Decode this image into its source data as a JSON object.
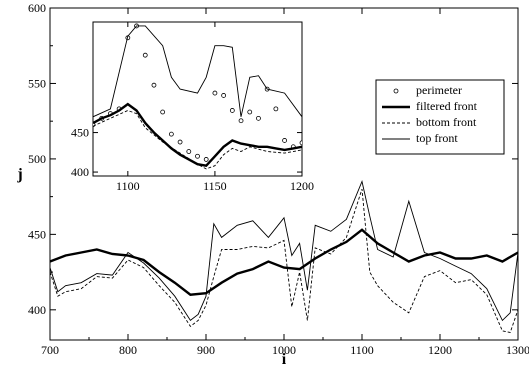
{
  "chart_data": [
    {
      "type": "line",
      "xlabel": "i",
      "ylabel": "j",
      "xlim": [
        700,
        1300
      ],
      "ylim": [
        380,
        600
      ],
      "xticks": [
        "700",
        "800",
        "900",
        "1000",
        "1100",
        "1200",
        "1300"
      ],
      "yticks": [
        "400",
        "450",
        "500",
        "550",
        "600"
      ],
      "grid": false,
      "legend_position": "right",
      "legend": [
        "perimeter",
        "filtered front",
        "bottom front",
        "top front"
      ],
      "series": [
        {
          "name": "filtered front",
          "style": "thick-solid",
          "x": [
            700,
            720,
            740,
            760,
            780,
            800,
            820,
            840,
            860,
            880,
            900,
            920,
            940,
            960,
            980,
            1000,
            1020,
            1040,
            1060,
            1080,
            1100,
            1120,
            1140,
            1160,
            1180,
            1200,
            1220,
            1240,
            1260,
            1280,
            1300
          ],
          "y": [
            432,
            436,
            438,
            440,
            437,
            436,
            433,
            425,
            418,
            410,
            411,
            418,
            424,
            427,
            432,
            428,
            427,
            434,
            440,
            445,
            453,
            444,
            438,
            432,
            436,
            438,
            434,
            434,
            436,
            432,
            438
          ]
        },
        {
          "name": "bottom front",
          "style": "dashed",
          "x": [
            700,
            710,
            720,
            740,
            760,
            780,
            800,
            820,
            840,
            860,
            880,
            890,
            900,
            910,
            920,
            940,
            960,
            980,
            1000,
            1010,
            1020,
            1030,
            1040,
            1060,
            1080,
            1100,
            1110,
            1120,
            1140,
            1160,
            1180,
            1200,
            1220,
            1240,
            1260,
            1280,
            1290,
            1300
          ],
          "y": [
            425,
            409,
            412,
            414,
            422,
            421,
            433,
            428,
            416,
            405,
            389,
            393,
            403,
            422,
            440,
            440,
            442,
            441,
            446,
            402,
            425,
            393,
            441,
            437,
            448,
            480,
            425,
            416,
            405,
            398,
            422,
            426,
            418,
            420,
            410,
            386,
            385,
            400
          ]
        },
        {
          "name": "top front",
          "style": "thin-solid",
          "x": [
            700,
            710,
            720,
            740,
            760,
            780,
            800,
            820,
            840,
            860,
            880,
            890,
            900,
            910,
            920,
            940,
            960,
            980,
            1000,
            1010,
            1020,
            1030,
            1040,
            1060,
            1080,
            1100,
            1110,
            1120,
            1140,
            1160,
            1180,
            1200,
            1220,
            1240,
            1260,
            1280,
            1290,
            1300
          ],
          "y": [
            428,
            412,
            416,
            418,
            424,
            423,
            438,
            431,
            421,
            409,
            393,
            397,
            409,
            457,
            448,
            456,
            459,
            448,
            461,
            436,
            444,
            413,
            456,
            452,
            460,
            485,
            462,
            440,
            435,
            472,
            438,
            434,
            429,
            424,
            414,
            393,
            398,
            438
          ]
        }
      ]
    },
    {
      "type": "line",
      "xlim": [
        1080,
        1200
      ],
      "ylim": [
        395,
        590
      ],
      "xticks": [
        "1100",
        "1150",
        "1200"
      ],
      "yticks": [
        "400",
        "450"
      ],
      "series": [
        {
          "name": "perimeter",
          "style": "circle-markers",
          "x": [
            1080,
            1085,
            1090,
            1095,
            1100,
            1105,
            1110,
            1115,
            1120,
            1125,
            1130,
            1135,
            1140,
            1145,
            1150,
            1155,
            1160,
            1165,
            1170,
            1175,
            1180,
            1185,
            1190,
            1195,
            1200
          ],
          "y": [
            460,
            468,
            474,
            480,
            570,
            585,
            548,
            510,
            476,
            448,
            438,
            426,
            420,
            416,
            500,
            497,
            478,
            465,
            476,
            468,
            505,
            480,
            440,
            432,
            437
          ]
        },
        {
          "name": "filtered front",
          "style": "thick-solid",
          "x": [
            1080,
            1085,
            1090,
            1095,
            1100,
            1105,
            1110,
            1115,
            1120,
            1125,
            1130,
            1135,
            1140,
            1145,
            1150,
            1155,
            1160,
            1165,
            1170,
            1175,
            1180,
            1185,
            1190,
            1195,
            1200
          ],
          "y": [
            462,
            468,
            472,
            478,
            486,
            478,
            462,
            450,
            440,
            430,
            422,
            416,
            410,
            408,
            420,
            432,
            440,
            436,
            434,
            432,
            432,
            430,
            428,
            430,
            432
          ]
        },
        {
          "name": "bottom front",
          "style": "dashed",
          "x": [
            1080,
            1090,
            1100,
            1105,
            1110,
            1120,
            1130,
            1140,
            1145,
            1150,
            1155,
            1160,
            1165,
            1170,
            1180,
            1190,
            1200
          ],
          "y": [
            458,
            468,
            478,
            474,
            456,
            438,
            424,
            410,
            404,
            408,
            422,
            430,
            426,
            432,
            426,
            424,
            428
          ]
        },
        {
          "name": "top front",
          "style": "thin-solid",
          "x": [
            1080,
            1090,
            1100,
            1105,
            1110,
            1120,
            1125,
            1130,
            1140,
            1145,
            1150,
            1155,
            1160,
            1165,
            1170,
            1175,
            1180,
            1190,
            1200
          ],
          "y": [
            470,
            480,
            572,
            585,
            585,
            560,
            520,
            505,
            500,
            520,
            560,
            560,
            558,
            470,
            520,
            522,
            505,
            500,
            470
          ]
        }
      ]
    }
  ]
}
